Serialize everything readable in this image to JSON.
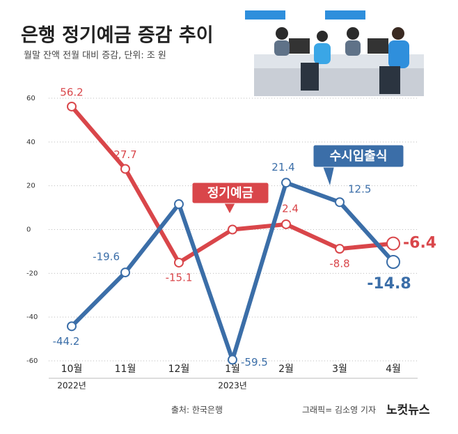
{
  "chart_data": {
    "type": "line",
    "title": "은행 정기예금 증감 추이",
    "subtitle": "월말 잔액 전월 대비 증감, 단위: 조 원",
    "categories": [
      "10월",
      "11월",
      "12월",
      "1월",
      "2월",
      "3월",
      "4월"
    ],
    "year_labels": [
      "2022년",
      "2023년"
    ],
    "series": [
      {
        "name": "정기예금",
        "color": "#d9464a",
        "values": [
          56.2,
          27.7,
          -15.1,
          0,
          2.4,
          -8.8,
          -6.4
        ],
        "value_labels": [
          "56.2",
          "27.7",
          "-15.1",
          null,
          "2.4",
          "-8.8",
          "-6.4"
        ]
      },
      {
        "name": "수시입출식",
        "color": "#3b6ea8",
        "values": [
          -44.2,
          -19.6,
          11.6,
          -59.5,
          21.4,
          12.5,
          -14.8
        ],
        "value_labels": [
          "-44.2",
          "-19.6",
          null,
          "-59.5",
          "21.4",
          "12.5",
          "-14.8"
        ]
      }
    ],
    "ylim": [
      -60,
      60
    ],
    "yticks": [
      -60,
      -40,
      -20,
      0,
      20,
      40,
      60
    ],
    "grid": true,
    "source": "출처: 한국은행",
    "credit": "그래픽= 김소영 기자",
    "logo": "노컷뉴스"
  }
}
